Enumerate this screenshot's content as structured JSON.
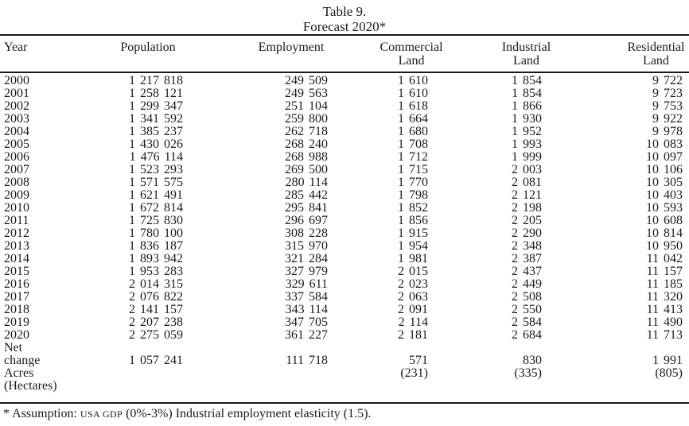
{
  "title": {
    "line1": "Table 9.",
    "line2": "Forecast 2020*"
  },
  "colors": {
    "text": "#1a1a1c",
    "rule": "#1a1a1c",
    "background": "#ffffff"
  },
  "table": {
    "columns": [
      "Year",
      "Population",
      "Employment",
      "Commercial Land",
      "Industrial Land",
      "Residential Land"
    ],
    "header_lines": [
      [
        "Year"
      ],
      [
        "Population"
      ],
      [
        "Employment"
      ],
      [
        "Commercial",
        "Land"
      ],
      [
        "Industrial",
        "Land"
      ],
      [
        "Residential",
        "Land"
      ]
    ],
    "rows": [
      [
        "2000",
        "1 217 818",
        "249 509",
        "1 610",
        "1 854",
        "9 722"
      ],
      [
        "2001",
        "1 258 121",
        "249 563",
        "1 610",
        "1 854",
        "9 723"
      ],
      [
        "2002",
        "1 299 347",
        "251 104",
        "1 618",
        "1 866",
        "9 753"
      ],
      [
        "2003",
        "1 341 592",
        "259 800",
        "1 664",
        "1 930",
        "9 922"
      ],
      [
        "2004",
        "1 385 237",
        "262 718",
        "1 680",
        "1 952",
        "9 978"
      ],
      [
        "2005",
        "1 430 026",
        "268 240",
        "1 708",
        "1 993",
        "10 083"
      ],
      [
        "2006",
        "1 476 114",
        "268 988",
        "1 712",
        "1 999",
        "10 097"
      ],
      [
        "2007",
        "1 523 293",
        "269 500",
        "1 715",
        "2 003",
        "10 106"
      ],
      [
        "2008",
        "1 571 575",
        "280 114",
        "1 770",
        "2 081",
        "10 305"
      ],
      [
        "2009",
        "1 621 491",
        "285 442",
        "1 798",
        "2 121",
        "10 403"
      ],
      [
        "2010",
        "1 672 814",
        "295 841",
        "1 852",
        "2 198",
        "10 593"
      ],
      [
        "2011",
        "1 725 830",
        "296 697",
        "1 856",
        "2 205",
        "10 608"
      ],
      [
        "2012",
        "1 780 100",
        "308 228",
        "1 915",
        "2 290",
        "10 814"
      ],
      [
        "2013",
        "1 836 187",
        "315 970",
        "1 954",
        "2 348",
        "10 950"
      ],
      [
        "2014",
        "1 893 942",
        "321 284",
        "1 981",
        "2 387",
        "11 042"
      ],
      [
        "2015",
        "1 953 283",
        "327 979",
        "2 015",
        "2 437",
        "11 157"
      ],
      [
        "2016",
        "2 014 315",
        "329 611",
        "2 023",
        "2 449",
        "11 185"
      ],
      [
        "2017",
        "2 076 822",
        "337 584",
        "2 063",
        "2 508",
        "11 320"
      ],
      [
        "2018",
        "2 141 157",
        "343 114",
        "2 091",
        "2 550",
        "11 413"
      ],
      [
        "2019",
        "2 207 238",
        "347 705",
        "2 114",
        "2 584",
        "11 490"
      ],
      [
        "2020",
        "2 275 059",
        "361 227",
        "2 181",
        "2 684",
        "11 713"
      ]
    ],
    "summary_rows": [
      [
        "Net",
        "",
        "",
        "",
        "",
        ""
      ],
      [
        "change",
        "1 057 241",
        "111 718",
        "571",
        "830",
        "1 991"
      ],
      [
        "Acres",
        "",
        "",
        "(231)",
        "(335)",
        "(805)"
      ],
      [
        "(Hectares)",
        "",
        "",
        "",
        "",
        ""
      ]
    ]
  },
  "footnote": {
    "prefix": "* Assumption:",
    "smallcaps": "USA GDP",
    "rest": "(0%-3%) Industrial employment elasticity (1.5)."
  }
}
